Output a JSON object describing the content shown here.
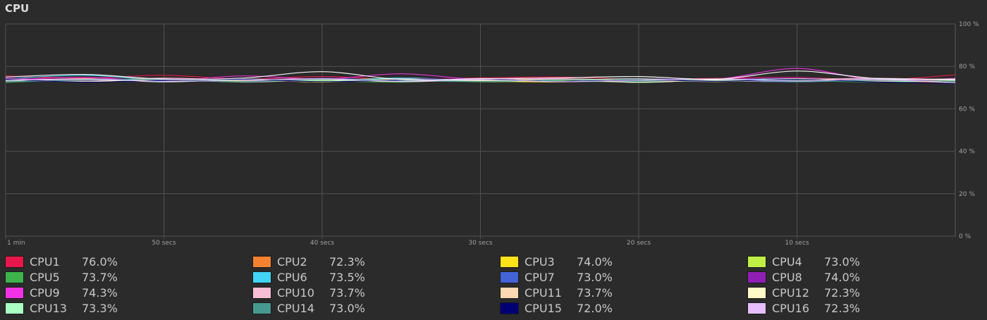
{
  "section": {
    "title": "CPU"
  },
  "chart_data": {
    "type": "line",
    "x": [
      60,
      55,
      50,
      45,
      40,
      35,
      30,
      25,
      20,
      15,
      10,
      5,
      0
    ],
    "x_tick_labels": [
      "1 min",
      "50 secs",
      "40 secs",
      "30 secs",
      "20 secs",
      "10 secs"
    ],
    "x_tick_values": [
      60,
      50,
      40,
      30,
      20,
      10
    ],
    "y_tick_labels": [
      "100 %",
      "80 %",
      "60 %",
      "40 %",
      "20 %",
      "0 %"
    ],
    "y_tick_values": [
      100,
      80,
      60,
      40,
      20,
      0
    ],
    "ylim": [
      0,
      100
    ],
    "xlim": [
      60,
      0
    ],
    "grid": true,
    "series": [
      {
        "name": "CPU1",
        "color": "#e8174a",
        "values": [
          75.5,
          74.5,
          75.8,
          74.0,
          75.2,
          73.8,
          74.6,
          75.0,
          73.9,
          74.4,
          74.8,
          73.6,
          76.0
        ]
      },
      {
        "name": "CPU2",
        "color": "#f58231",
        "values": [
          74.0,
          73.2,
          74.4,
          73.5,
          74.1,
          72.9,
          73.8,
          74.2,
          73.1,
          73.7,
          74.0,
          73.3,
          72.3
        ]
      },
      {
        "name": "CPU3",
        "color": "#ffe119",
        "values": [
          73.0,
          74.2,
          72.8,
          73.9,
          72.6,
          74.0,
          73.1,
          72.7,
          73.8,
          72.9,
          73.6,
          72.8,
          74.0
        ]
      },
      {
        "name": "CPU4",
        "color": "#bfef45",
        "values": [
          73.8,
          72.9,
          74.1,
          73.0,
          73.6,
          74.2,
          72.8,
          73.5,
          74.0,
          73.2,
          72.9,
          73.7,
          73.0
        ]
      },
      {
        "name": "CPU5",
        "color": "#3cb44b",
        "values": [
          72.5,
          73.6,
          72.9,
          74.0,
          73.3,
          72.6,
          73.9,
          73.1,
          72.8,
          74.1,
          73.4,
          72.7,
          73.7
        ]
      },
      {
        "name": "CPU6",
        "color": "#42d4f4",
        "values": [
          74.2,
          75.8,
          73.5,
          74.1,
          73.0,
          74.6,
          73.3,
          74.0,
          72.5,
          73.8,
          74.2,
          73.0,
          73.5
        ]
      },
      {
        "name": "CPU7",
        "color": "#4363d8",
        "values": [
          73.1,
          74.0,
          73.6,
          72.8,
          74.4,
          73.2,
          73.9,
          72.9,
          74.1,
          73.5,
          72.7,
          74.0,
          73.0
        ]
      },
      {
        "name": "CPU8",
        "color": "#911eb4",
        "values": [
          74.5,
          73.4,
          74.1,
          73.7,
          72.9,
          74.3,
          73.5,
          74.0,
          73.1,
          73.9,
          74.6,
          73.3,
          74.0
        ]
      },
      {
        "name": "CPU9",
        "color": "#f032e6",
        "values": [
          73.6,
          74.8,
          73.2,
          75.5,
          74.0,
          76.5,
          73.8,
          74.2,
          73.5,
          74.0,
          79.0,
          73.6,
          74.3
        ]
      },
      {
        "name": "CPU10",
        "color": "#fabed4",
        "values": [
          74.1,
          73.0,
          74.5,
          73.4,
          74.0,
          73.1,
          74.3,
          73.6,
          74.2,
          73.0,
          73.8,
          74.4,
          73.7
        ]
      },
      {
        "name": "CPU11",
        "color": "#ffd8b1",
        "values": [
          72.9,
          74.0,
          73.3,
          74.1,
          72.8,
          73.9,
          73.2,
          74.0,
          73.5,
          72.9,
          74.2,
          73.1,
          73.7
        ]
      },
      {
        "name": "CPU12",
        "color": "#fffac8",
        "values": [
          73.5,
          72.8,
          74.0,
          72.6,
          73.7,
          72.9,
          73.4,
          73.8,
          72.5,
          73.6,
          72.9,
          73.9,
          72.3
        ]
      },
      {
        "name": "CPU13",
        "color": "#aaffc3",
        "values": [
          73.3,
          74.1,
          72.7,
          73.8,
          73.1,
          74.2,
          72.9,
          73.6,
          74.0,
          73.2,
          73.9,
          72.8,
          73.3
        ]
      },
      {
        "name": "CPU14",
        "color": "#469990",
        "values": [
          72.8,
          73.5,
          73.9,
          72.7,
          74.0,
          73.3,
          72.9,
          73.7,
          73.1,
          74.0,
          72.8,
          73.5,
          73.0
        ]
      },
      {
        "name": "CPU15",
        "color": "#000075",
        "values": [
          73.9,
          72.6,
          73.4,
          74.0,
          72.8,
          73.6,
          74.1,
          72.9,
          73.7,
          73.0,
          73.8,
          72.7,
          72.0
        ]
      },
      {
        "name": "CPU16",
        "color": "#e6beff",
        "values": [
          73.4,
          74.0,
          72.9,
          73.6,
          74.2,
          73.0,
          73.8,
          72.8,
          73.5,
          74.1,
          73.2,
          73.9,
          72.3
        ]
      },
      {
        "name": "",
        "color": "#ffffff",
        "values": [
          75.0,
          76.2,
          74.0,
          74.5,
          77.5,
          73.8,
          74.2,
          74.6,
          75.2,
          74.0,
          77.8,
          74.3,
          74.0
        ]
      }
    ]
  },
  "legend": {
    "items": [
      {
        "label": "CPU1",
        "value": "76.0%",
        "color": "#e8174a"
      },
      {
        "label": "CPU2",
        "value": "72.3%",
        "color": "#f58231"
      },
      {
        "label": "CPU3",
        "value": "74.0%",
        "color": "#ffe119"
      },
      {
        "label": "CPU4",
        "value": "73.0%",
        "color": "#bfef45"
      },
      {
        "label": "CPU5",
        "value": "73.7%",
        "color": "#3cb44b"
      },
      {
        "label": "CPU6",
        "value": "73.5%",
        "color": "#42d4f4"
      },
      {
        "label": "CPU7",
        "value": "73.0%",
        "color": "#4363d8"
      },
      {
        "label": "CPU8",
        "value": "74.0%",
        "color": "#911eb4"
      },
      {
        "label": "CPU9",
        "value": "74.3%",
        "color": "#f032e6"
      },
      {
        "label": "CPU10",
        "value": "73.7%",
        "color": "#fabed4"
      },
      {
        "label": "CPU11",
        "value": "73.7%",
        "color": "#ffd8b1"
      },
      {
        "label": "CPU12",
        "value": "72.3%",
        "color": "#fffac8"
      },
      {
        "label": "CPU13",
        "value": "73.3%",
        "color": "#aaffc3"
      },
      {
        "label": "CPU14",
        "value": "73.0%",
        "color": "#469990"
      },
      {
        "label": "CPU15",
        "value": "72.0%",
        "color": "#000075"
      },
      {
        "label": "CPU16",
        "value": "72.3%",
        "color": "#e6beff"
      }
    ]
  }
}
